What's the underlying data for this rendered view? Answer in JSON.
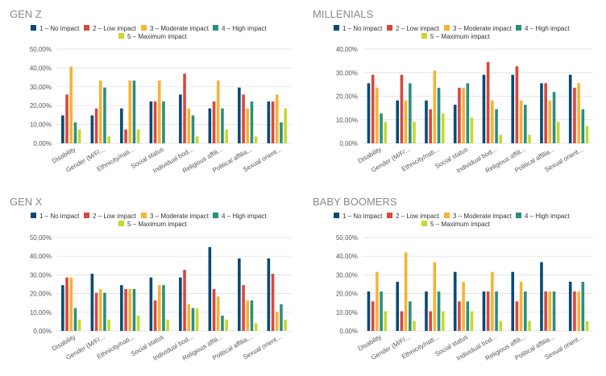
{
  "colors": [
    "#0a4a74",
    "#d9483b",
    "#f9b233",
    "#2a8f80",
    "#c5d92e"
  ],
  "legend": [
    "1 – No impact",
    "2 – Low impact",
    "3 – Moderate impact",
    "4 – High impact",
    "5 – Maximum impact"
  ],
  "categories": [
    "Disability",
    "Gender (M/F/...",
    "Ethnicity/nati...",
    "Social status",
    "Individual bod...",
    "Religious affili...",
    "Political affilia...",
    "Sexual orient..."
  ],
  "chart_data": [
    {
      "type": "bar",
      "title": "GEN Z",
      "ylim": [
        0,
        50
      ],
      "yticks": [
        "0,00%",
        "10,00%",
        "20,00%",
        "30,00%",
        "40,00%",
        "50,00%"
      ],
      "categories": [
        "Disability",
        "Gender (M/F/...",
        "Ethnicity/nati...",
        "Social status",
        "Individual bod...",
        "Religious affili...",
        "Political affilia...",
        "Sexual orient..."
      ],
      "series": [
        {
          "name": "1 – No impact",
          "values": [
            14.8,
            14.8,
            18.5,
            22.2,
            25.9,
            18.5,
            29.6,
            22.2
          ]
        },
        {
          "name": "2 – Low impact",
          "values": [
            25.9,
            18.5,
            7.4,
            22.2,
            37.0,
            22.2,
            25.9,
            22.2
          ]
        },
        {
          "name": "3 – Moderate impact",
          "values": [
            40.7,
            33.3,
            33.3,
            33.3,
            18.5,
            33.3,
            18.5,
            25.9
          ]
        },
        {
          "name": "4 – High impact",
          "values": [
            11.1,
            29.6,
            33.3,
            22.2,
            14.8,
            18.5,
            22.2,
            11.1
          ]
        },
        {
          "name": "5 – Maximum impact",
          "values": [
            7.4,
            3.7,
            7.4,
            0,
            3.7,
            7.4,
            3.7,
            18.5
          ]
        }
      ]
    },
    {
      "type": "bar",
      "title": "MILLENIALS",
      "ylim": [
        0,
        40
      ],
      "yticks": [
        "0,00%",
        "10,00%",
        "20,00%",
        "30,00%",
        "40,00%"
      ],
      "categories": [
        "Disability",
        "Gender (M/F/...",
        "Ethnicity/nati...",
        "Social status",
        "Individual bod...",
        "Religious affili...",
        "Political affilia...",
        "Sexual orient..."
      ],
      "series": [
        {
          "name": "1 – No impact",
          "values": [
            25.5,
            18.2,
            18.2,
            16.4,
            29.1,
            29.1,
            25.5,
            29.1
          ]
        },
        {
          "name": "2 – Low impact",
          "values": [
            29.1,
            29.1,
            14.5,
            23.6,
            34.5,
            32.7,
            25.5,
            23.6
          ]
        },
        {
          "name": "3 – Moderate impact",
          "values": [
            23.6,
            18.2,
            30.9,
            23.6,
            18.2,
            18.2,
            18.2,
            25.5
          ]
        },
        {
          "name": "4 – High impact",
          "values": [
            12.7,
            25.5,
            23.6,
            25.5,
            14.5,
            16.4,
            21.8,
            14.5
          ]
        },
        {
          "name": "5 – Maximum impact",
          "values": [
            9.1,
            9.1,
            12.7,
            10.9,
            3.6,
            3.6,
            9.1,
            7.3
          ]
        }
      ]
    },
    {
      "type": "bar",
      "title": "GEN X",
      "ylim": [
        0,
        50
      ],
      "yticks": [
        "0,00%",
        "10,00%",
        "20,00%",
        "30,00%",
        "40,00%",
        "50,00%"
      ],
      "categories": [
        "Disability",
        "Gender (M/F/...",
        "Ethnicity/nati...",
        "Social status",
        "Individual bod...",
        "Religious affili...",
        "Political affilia...",
        "Sexual orient..."
      ],
      "series": [
        {
          "name": "1 – No impact",
          "values": [
            24.5,
            30.6,
            24.5,
            28.6,
            28.6,
            44.9,
            38.8,
            38.8
          ]
        },
        {
          "name": "2 – Low impact",
          "values": [
            28.6,
            20.4,
            22.4,
            16.3,
            32.7,
            22.4,
            24.5,
            30.6
          ]
        },
        {
          "name": "3 – Moderate impact",
          "values": [
            28.6,
            22.4,
            22.4,
            24.5,
            14.3,
            18.4,
            16.3,
            10.2
          ]
        },
        {
          "name": "4 – High impact",
          "values": [
            12.2,
            20.4,
            22.4,
            24.5,
            12.2,
            8.2,
            16.3,
            14.3
          ]
        },
        {
          "name": "5 – Maximum impact",
          "values": [
            6.1,
            6.1,
            8.2,
            6.1,
            12.2,
            6.1,
            4.1,
            6.1
          ]
        }
      ]
    },
    {
      "type": "bar",
      "title": "BABY BOOMERS",
      "ylim": [
        0,
        50
      ],
      "yticks": [
        "0,00%",
        "10,00%",
        "20,00%",
        "30,00%",
        "40,00%",
        "50,00%"
      ],
      "categories": [
        "Disability",
        "Gender (M/F/...",
        "Ethnicity/nati...",
        "Social status",
        "Individual bod...",
        "Religious affili...",
        "Political affilia...",
        "Sexual orient..."
      ],
      "series": [
        {
          "name": "1 – No impact",
          "values": [
            21.1,
            26.3,
            21.1,
            31.6,
            21.1,
            31.6,
            36.8,
            26.3
          ]
        },
        {
          "name": "2 – Low impact",
          "values": [
            15.8,
            10.5,
            10.5,
            15.8,
            21.1,
            15.8,
            21.1,
            21.1
          ]
        },
        {
          "name": "3 – Moderate impact",
          "values": [
            31.6,
            42.1,
            36.8,
            26.3,
            31.6,
            26.3,
            21.1,
            21.1
          ]
        },
        {
          "name": "4 – High impact",
          "values": [
            21.1,
            15.8,
            21.1,
            15.8,
            21.1,
            21.1,
            21.1,
            26.3
          ]
        },
        {
          "name": "5 – Maximum impact",
          "values": [
            10.5,
            5.3,
            10.5,
            10.5,
            5.3,
            5.3,
            0,
            5.3
          ]
        }
      ]
    }
  ]
}
